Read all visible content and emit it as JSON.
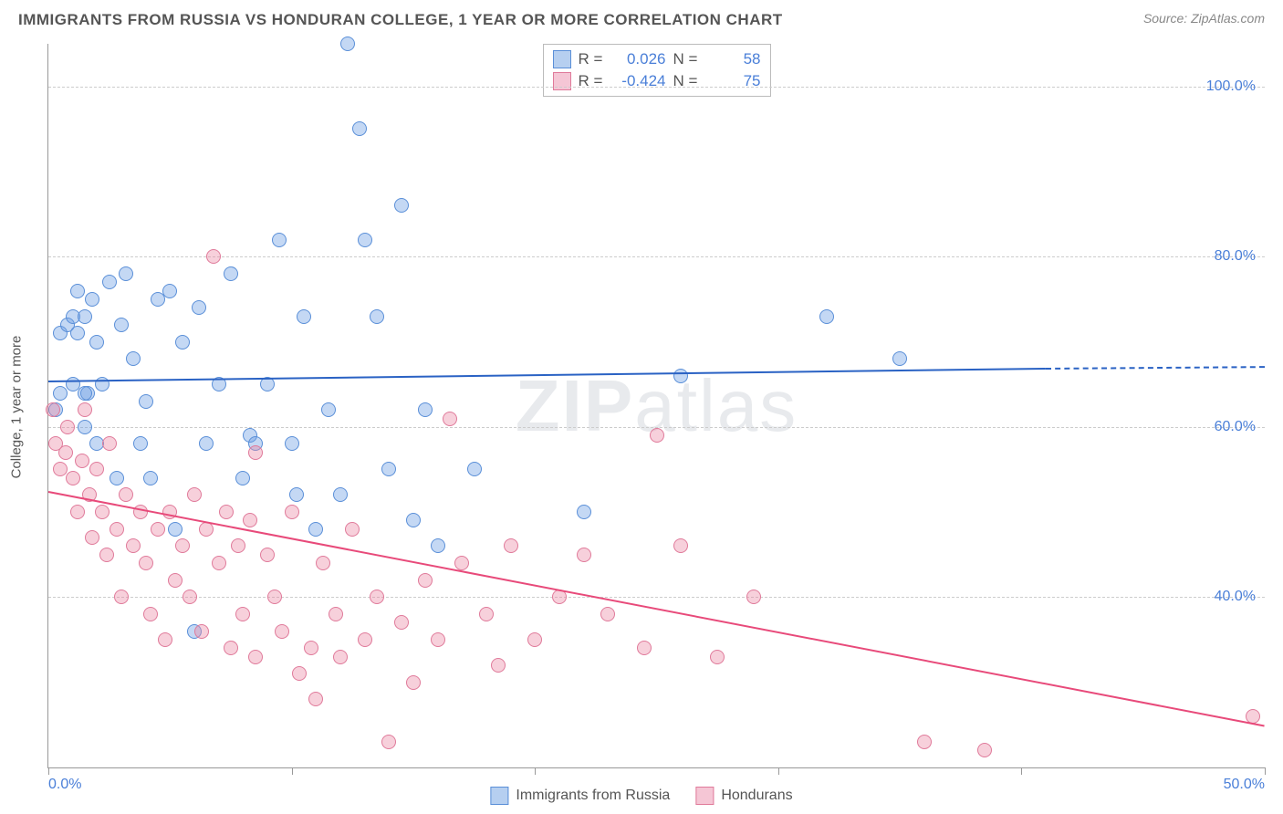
{
  "header": {
    "title": "IMMIGRANTS FROM RUSSIA VS HONDURAN COLLEGE, 1 YEAR OR MORE CORRELATION CHART",
    "source_prefix": "Source: ",
    "source_name": "ZipAtlas.com"
  },
  "chart": {
    "type": "scatter",
    "ylabel": "College, 1 year or more",
    "watermark": "ZIPatlas",
    "background_color": "#ffffff",
    "grid_color": "#cccccc",
    "axis_color": "#999999",
    "xlim": [
      0,
      50
    ],
    "ylim": [
      20,
      105
    ],
    "xticks": [
      0,
      10,
      20,
      30,
      40,
      50
    ],
    "xtick_labels": [
      "0.0%",
      "",
      "",
      "",
      "",
      "50.0%"
    ],
    "yticks": [
      40,
      60,
      80,
      100
    ],
    "ytick_labels": [
      "40.0%",
      "60.0%",
      "80.0%",
      "100.0%"
    ],
    "marker_radius": 8,
    "marker_opacity": 0.55,
    "line_width": 2,
    "series": [
      {
        "name": "Immigrants from Russia",
        "color_fill": "rgba(108, 157, 228, 0.4)",
        "color_stroke": "#5a8fd8",
        "swatch_fill": "#b6cff0",
        "swatch_border": "#5a8fd8",
        "line_color": "#2a62c4",
        "r": "0.026",
        "n": "58",
        "trend": {
          "x1": 0,
          "y1": 65.5,
          "x2": 41,
          "y2": 67.0,
          "dash_from_x": 41,
          "dash_to_x": 50,
          "dash_y": 67.2
        },
        "points": [
          [
            0.3,
            62
          ],
          [
            0.5,
            71
          ],
          [
            0.8,
            72
          ],
          [
            1.0,
            65
          ],
          [
            1.0,
            73
          ],
          [
            1.2,
            76
          ],
          [
            1.2,
            71
          ],
          [
            1.5,
            60
          ],
          [
            1.5,
            73
          ],
          [
            1.6,
            64
          ],
          [
            1.8,
            75
          ],
          [
            2.0,
            58
          ],
          [
            2.0,
            70
          ],
          [
            2.2,
            65
          ],
          [
            2.5,
            77
          ],
          [
            2.8,
            54
          ],
          [
            3.0,
            72
          ],
          [
            3.2,
            78
          ],
          [
            3.5,
            68
          ],
          [
            3.8,
            58
          ],
          [
            4.0,
            63
          ],
          [
            4.2,
            54
          ],
          [
            4.5,
            75
          ],
          [
            5.0,
            76
          ],
          [
            5.2,
            48
          ],
          [
            5.5,
            70
          ],
          [
            6.0,
            36
          ],
          [
            6.2,
            74
          ],
          [
            6.5,
            58
          ],
          [
            7.0,
            65
          ],
          [
            7.5,
            78
          ],
          [
            8.0,
            54
          ],
          [
            8.3,
            59
          ],
          [
            8.5,
            58
          ],
          [
            9.0,
            65
          ],
          [
            9.5,
            82
          ],
          [
            10.0,
            58
          ],
          [
            10.2,
            52
          ],
          [
            10.5,
            73
          ],
          [
            11.0,
            48
          ],
          [
            11.5,
            62
          ],
          [
            12.0,
            52
          ],
          [
            12.3,
            105
          ],
          [
            12.8,
            95
          ],
          [
            13.0,
            82
          ],
          [
            13.5,
            73
          ],
          [
            14.0,
            55
          ],
          [
            14.5,
            86
          ],
          [
            15.0,
            49
          ],
          [
            15.5,
            62
          ],
          [
            16.0,
            46
          ],
          [
            17.5,
            55
          ],
          [
            22.0,
            50
          ],
          [
            26.0,
            66
          ],
          [
            32.0,
            73
          ],
          [
            35.0,
            68
          ],
          [
            1.5,
            64
          ],
          [
            0.5,
            64
          ]
        ]
      },
      {
        "name": "Hondurans",
        "color_fill": "rgba(236, 138, 164, 0.4)",
        "color_stroke": "#e07a9a",
        "swatch_fill": "#f5c6d5",
        "swatch_border": "#e07a9a",
        "line_color": "#e84a7a",
        "r": "-0.424",
        "n": "75",
        "trend": {
          "x1": 0,
          "y1": 52.5,
          "x2": 50,
          "y2": 25.0
        },
        "points": [
          [
            0.2,
            62
          ],
          [
            0.3,
            58
          ],
          [
            0.5,
            55
          ],
          [
            0.7,
            57
          ],
          [
            0.8,
            60
          ],
          [
            1.0,
            54
          ],
          [
            1.2,
            50
          ],
          [
            1.4,
            56
          ],
          [
            1.5,
            62
          ],
          [
            1.7,
            52
          ],
          [
            1.8,
            47
          ],
          [
            2.0,
            55
          ],
          [
            2.2,
            50
          ],
          [
            2.4,
            45
          ],
          [
            2.5,
            58
          ],
          [
            2.8,
            48
          ],
          [
            3.0,
            40
          ],
          [
            3.2,
            52
          ],
          [
            3.5,
            46
          ],
          [
            3.8,
            50
          ],
          [
            4.0,
            44
          ],
          [
            4.2,
            38
          ],
          [
            4.5,
            48
          ],
          [
            4.8,
            35
          ],
          [
            5.0,
            50
          ],
          [
            5.2,
            42
          ],
          [
            5.5,
            46
          ],
          [
            5.8,
            40
          ],
          [
            6.0,
            52
          ],
          [
            6.3,
            36
          ],
          [
            6.5,
            48
          ],
          [
            6.8,
            80
          ],
          [
            7.0,
            44
          ],
          [
            7.3,
            50
          ],
          [
            7.5,
            34
          ],
          [
            7.8,
            46
          ],
          [
            8.0,
            38
          ],
          [
            8.3,
            49
          ],
          [
            8.5,
            33
          ],
          [
            9.0,
            45
          ],
          [
            9.3,
            40
          ],
          [
            9.6,
            36
          ],
          [
            10.0,
            50
          ],
          [
            10.3,
            31
          ],
          [
            10.8,
            34
          ],
          [
            11.0,
            28
          ],
          [
            11.3,
            44
          ],
          [
            11.8,
            38
          ],
          [
            12.0,
            33
          ],
          [
            12.5,
            48
          ],
          [
            13.0,
            35
          ],
          [
            13.5,
            40
          ],
          [
            14.0,
            23
          ],
          [
            14.5,
            37
          ],
          [
            15.0,
            30
          ],
          [
            15.5,
            42
          ],
          [
            16.0,
            35
          ],
          [
            16.5,
            61
          ],
          [
            17.0,
            44
          ],
          [
            18.0,
            38
          ],
          [
            18.5,
            32
          ],
          [
            19.0,
            46
          ],
          [
            20.0,
            35
          ],
          [
            21.0,
            40
          ],
          [
            22.0,
            45
          ],
          [
            23.0,
            38
          ],
          [
            24.5,
            34
          ],
          [
            25.0,
            59
          ],
          [
            26.0,
            46
          ],
          [
            27.5,
            33
          ],
          [
            29.0,
            40
          ],
          [
            36.0,
            23
          ],
          [
            38.5,
            22
          ],
          [
            49.5,
            26
          ],
          [
            8.5,
            57
          ]
        ]
      }
    ],
    "stats_legend": {
      "r_label": "R =",
      "n_label": "N ="
    },
    "bottom_legend": {
      "label1": "Immigrants from Russia",
      "label2": "Hondurans"
    }
  }
}
